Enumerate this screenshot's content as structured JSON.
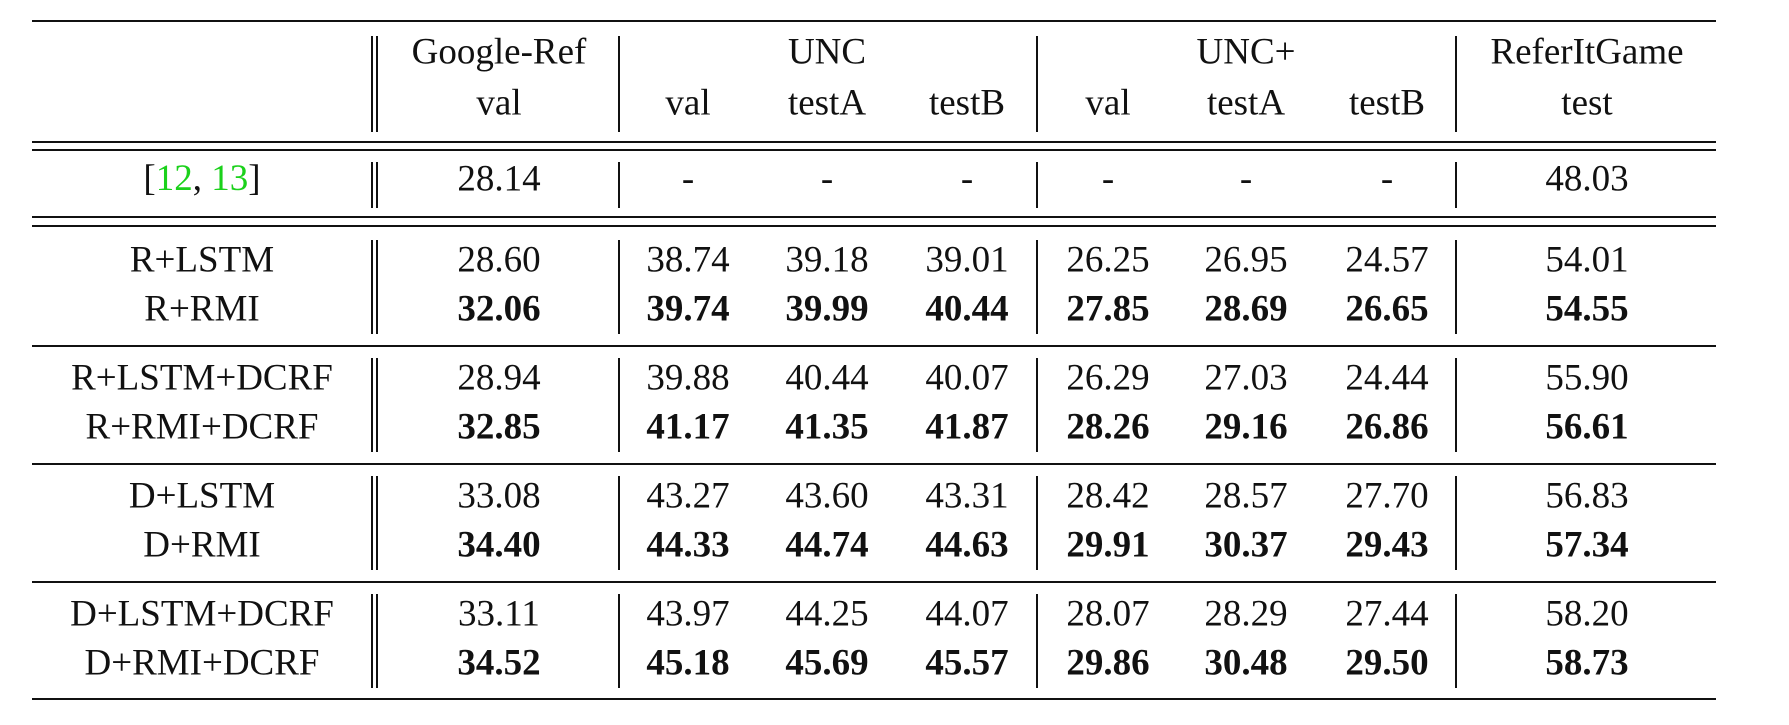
{
  "table": {
    "header": {
      "groups": [
        "Google-Ref",
        "UNC",
        "UNC+",
        "ReferItGame"
      ],
      "subcols": [
        "val",
        "val",
        "testA",
        "testB",
        "val",
        "testA",
        "testB",
        "test"
      ]
    },
    "baseline": {
      "label_parts": [
        "[",
        "12",
        ", ",
        "13",
        "]"
      ],
      "cells": [
        "28.14",
        "-",
        "-",
        "-",
        "-",
        "-",
        "-",
        "48.03"
      ]
    },
    "groups": [
      {
        "rows": [
          {
            "label": "R+LSTM",
            "bold": false,
            "cells": [
              "28.60",
              "38.74",
              "39.18",
              "39.01",
              "26.25",
              "26.95",
              "24.57",
              "54.01"
            ]
          },
          {
            "label": "R+RMI",
            "bold": true,
            "cells": [
              "32.06",
              "39.74",
              "39.99",
              "40.44",
              "27.85",
              "28.69",
              "26.65",
              "54.55"
            ]
          }
        ]
      },
      {
        "rows": [
          {
            "label": "R+LSTM+DCRF",
            "bold": false,
            "cells": [
              "28.94",
              "39.88",
              "40.44",
              "40.07",
              "26.29",
              "27.03",
              "24.44",
              "55.90"
            ]
          },
          {
            "label": "R+RMI+DCRF",
            "bold": true,
            "cells": [
              "32.85",
              "41.17",
              "41.35",
              "41.87",
              "28.26",
              "29.16",
              "26.86",
              "56.61"
            ]
          }
        ]
      },
      {
        "rows": [
          {
            "label": "D+LSTM",
            "bold": false,
            "cells": [
              "33.08",
              "43.27",
              "43.60",
              "43.31",
              "28.42",
              "28.57",
              "27.70",
              "56.83"
            ]
          },
          {
            "label": "D+RMI",
            "bold": true,
            "cells": [
              "34.40",
              "44.33",
              "44.74",
              "44.63",
              "29.91",
              "30.37",
              "29.43",
              "57.34"
            ]
          }
        ]
      },
      {
        "rows": [
          {
            "label": "D+LSTM+DCRF",
            "bold": false,
            "cells": [
              "33.11",
              "43.97",
              "44.25",
              "44.07",
              "28.07",
              "28.29",
              "27.44",
              "58.20"
            ]
          },
          {
            "label": "D+RMI+DCRF",
            "bold": true,
            "cells": [
              "34.52",
              "45.18",
              "45.69",
              "45.57",
              "29.86",
              "30.48",
              "29.50",
              "58.73"
            ]
          }
        ]
      }
    ]
  }
}
